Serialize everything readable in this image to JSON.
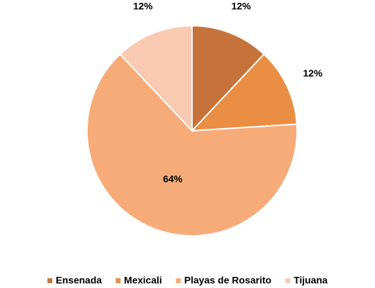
{
  "chart_data": {
    "type": "pie",
    "categories": [
      "Ensenada",
      "Mexicali",
      "Playas de Rosarito",
      "Tijuana"
    ],
    "values": [
      12,
      12,
      64,
      12
    ],
    "value_labels": [
      "12%",
      "12%",
      "64%",
      "12%"
    ],
    "colors": [
      "#C5733A",
      "#EA8E43",
      "#F7AB79",
      "#F9C9B1"
    ],
    "legend": "bottom"
  }
}
